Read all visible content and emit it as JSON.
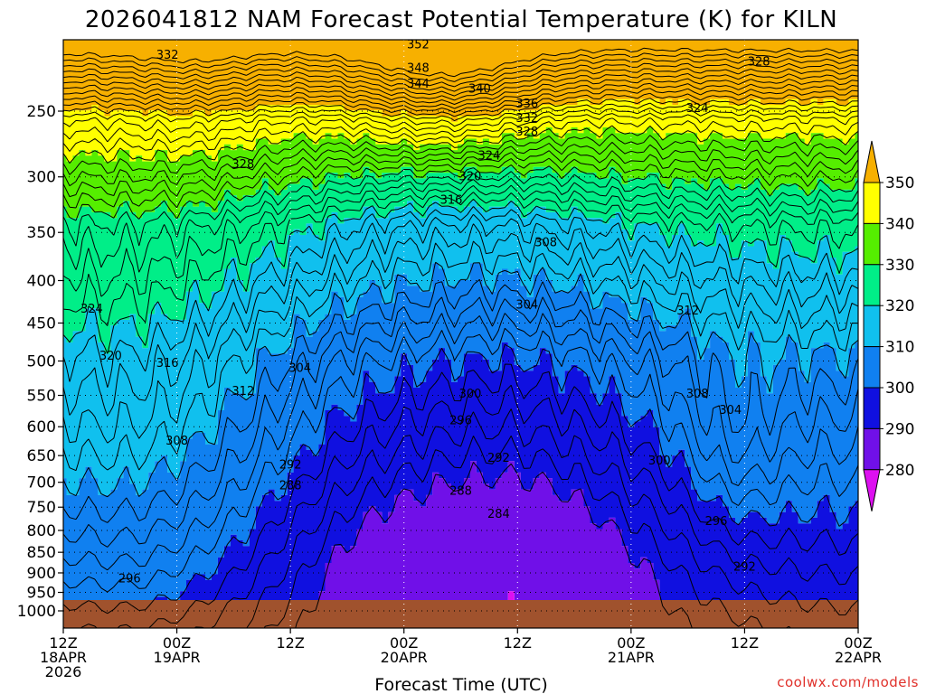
{
  "chart_data": {
    "type": "contour",
    "title": "2026041812 NAM Forecast Potential Temperature (K) for KILN",
    "xlabel": "Forecast Time (UTC)",
    "ylabel": "",
    "units": "K",
    "x_ticks": [
      {
        "h": 0,
        "lines": [
          "12Z",
          "18APR",
          "2026"
        ]
      },
      {
        "h": 12,
        "lines": [
          "00Z",
          "19APR"
        ]
      },
      {
        "h": 24,
        "lines": [
          "12Z"
        ]
      },
      {
        "h": 36,
        "lines": [
          "00Z",
          "20APR"
        ]
      },
      {
        "h": 48,
        "lines": [
          "12Z"
        ]
      },
      {
        "h": 60,
        "lines": [
          "00Z",
          "21APR"
        ]
      },
      {
        "h": 72,
        "lines": [
          "12Z"
        ]
      },
      {
        "h": 84,
        "lines": [
          "00Z",
          "22APR"
        ]
      }
    ],
    "xlim_hours": [
      0,
      84
    ],
    "y_ticks": [
      "250",
      "300",
      "350",
      "400",
      "450",
      "500",
      "550",
      "600",
      "650",
      "700",
      "750",
      "800",
      "850",
      "900",
      "950",
      "1000"
    ],
    "ylim_hPa": [
      200,
      1000
    ],
    "colorbar": {
      "labels": [
        "350",
        "340",
        "330",
        "320",
        "310",
        "300",
        "290",
        "280"
      ],
      "colors": [
        "#f7b000",
        "#ffff00",
        "#55ee00",
        "#00ee88",
        "#10c0ee",
        "#1080f0",
        "#1010e0",
        "#7010e8",
        "#dd10f0"
      ]
    },
    "contour_labels": [
      {
        "v": "352",
        "h": 37.5,
        "p": 208
      },
      {
        "v": "348",
        "h": 37.5,
        "p": 222
      },
      {
        "v": "344",
        "h": 37.5,
        "p": 232
      },
      {
        "v": "340",
        "h": 44,
        "p": 235
      },
      {
        "v": "336",
        "h": 49,
        "p": 245
      },
      {
        "v": "332",
        "h": 49,
        "p": 255
      },
      {
        "v": "328",
        "h": 49,
        "p": 265
      },
      {
        "v": "324",
        "h": 45,
        "p": 283
      },
      {
        "v": "320",
        "h": 43,
        "p": 300
      },
      {
        "v": "316",
        "h": 41,
        "p": 320
      },
      {
        "v": "308",
        "h": 51,
        "p": 360
      },
      {
        "v": "304",
        "h": 49,
        "p": 428
      },
      {
        "v": "312",
        "h": 66,
        "p": 435
      },
      {
        "v": "304",
        "h": 25,
        "p": 510
      },
      {
        "v": "300",
        "h": 43,
        "p": 548
      },
      {
        "v": "308",
        "h": 67,
        "p": 548
      },
      {
        "v": "304",
        "h": 70.5,
        "p": 573
      },
      {
        "v": "296",
        "h": 42,
        "p": 590
      },
      {
        "v": "292",
        "h": 46,
        "p": 655
      },
      {
        "v": "300",
        "h": 63,
        "p": 660
      },
      {
        "v": "292",
        "h": 24,
        "p": 667
      },
      {
        "v": "288",
        "h": 24,
        "p": 707
      },
      {
        "v": "288",
        "h": 42,
        "p": 717
      },
      {
        "v": "284",
        "h": 46,
        "p": 765
      },
      {
        "v": "296",
        "h": 69,
        "p": 780
      },
      {
        "v": "292",
        "h": 72,
        "p": 885
      },
      {
        "v": "296",
        "h": 7,
        "p": 915
      },
      {
        "v": "328",
        "h": 73.5,
        "p": 218
      },
      {
        "v": "324",
        "h": 67,
        "p": 248
      },
      {
        "v": "332",
        "h": 11,
        "p": 214
      },
      {
        "v": "328",
        "h": 19,
        "p": 290
      },
      {
        "v": "324",
        "h": 3,
        "p": 433
      },
      {
        "v": "320",
        "h": 5,
        "p": 493
      },
      {
        "v": "316",
        "h": 11,
        "p": 503
      },
      {
        "v": "312",
        "h": 19,
        "p": 544
      },
      {
        "v": "308",
        "h": 12,
        "p": 624
      }
    ],
    "layers": [
      {
        "lo": 340,
        "color": "#f7b000"
      },
      {
        "lo": 330,
        "color": "#ffff00"
      },
      {
        "lo": 320,
        "color": "#55ee00"
      },
      {
        "lo": 310,
        "color": "#00ee88"
      },
      {
        "lo": 300,
        "color": "#10c0ee"
      },
      {
        "lo": 290,
        "color": "#1080f0"
      },
      {
        "lo": 280,
        "color": "#1010e0"
      },
      {
        "lo": 270,
        "color": "#7010e8"
      },
      {
        "lo": 260,
        "color": "#dd10f0"
      }
    ],
    "ground_color": "#a0522d"
  },
  "credit": "coolwx.com/models"
}
